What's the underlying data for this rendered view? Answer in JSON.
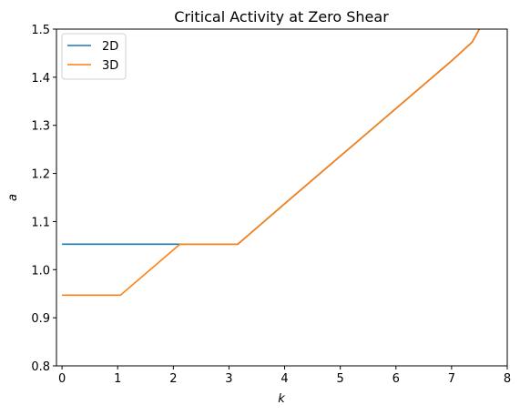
{
  "chart_data": {
    "type": "line",
    "title": "Critical Activity at Zero Shear",
    "xlabel": "k",
    "ylabel": "a",
    "xlim": [
      -0.1,
      8
    ],
    "ylim": [
      0.8,
      1.5
    ],
    "x_ticks": [
      0,
      1,
      2,
      3,
      4,
      5,
      6,
      7,
      8
    ],
    "y_ticks": [
      0.8,
      0.9,
      1.0,
      1.1,
      1.2,
      1.3,
      1.4,
      1.5
    ],
    "x_tick_labels": [
      "0",
      "1",
      "2",
      "3",
      "4",
      "5",
      "6",
      "7",
      "8"
    ],
    "y_tick_labels": [
      "0.8",
      "0.9",
      "1.0",
      "1.1",
      "1.2",
      "1.3",
      "1.4",
      "1.5"
    ],
    "grid": false,
    "legend_position": "top-left",
    "series": [
      {
        "name": "2D",
        "color": "#1f77b4",
        "x": [
          0,
          1,
          2.12,
          3.16,
          4,
          5,
          6,
          7,
          7.37,
          7.5
        ],
        "y": [
          1.053,
          1.053,
          1.053,
          1.053,
          1.137,
          1.236,
          1.335,
          1.434,
          1.473,
          1.5
        ]
      },
      {
        "name": "3D",
        "color": "#ff7f0e",
        "x": [
          0,
          1.05,
          2.12,
          3.16,
          4,
          5,
          6,
          7,
          7.37,
          7.5
        ],
        "y": [
          0.947,
          0.947,
          1.053,
          1.053,
          1.137,
          1.236,
          1.335,
          1.434,
          1.473,
          1.5
        ]
      }
    ]
  }
}
